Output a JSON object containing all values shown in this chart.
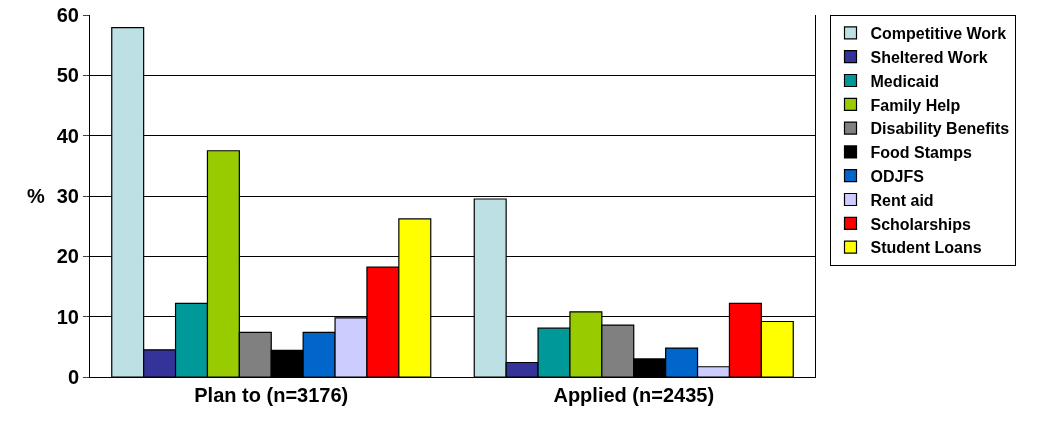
{
  "chart_data": {
    "type": "bar",
    "ylabel": "%",
    "categories": [
      "Plan to (n=3176)",
      "Applied (n=2435)"
    ],
    "ylim": [
      0,
      60
    ],
    "yticks": [
      0,
      10,
      20,
      30,
      40,
      50,
      60
    ],
    "grid": "y",
    "legend": "right",
    "series": [
      {
        "name": "Competitive Work",
        "color": "#bde0e4",
        "values": [
          57.9,
          29.5
        ]
      },
      {
        "name": "Sheltered Work",
        "color": "#333399",
        "values": [
          4.5,
          2.4
        ]
      },
      {
        "name": "Medicaid",
        "color": "#009999",
        "values": [
          12.2,
          8.1
        ]
      },
      {
        "name": "Family Help",
        "color": "#99cc00",
        "values": [
          37.5,
          10.8
        ]
      },
      {
        "name": "Disability Benefits",
        "color": "#808080",
        "values": [
          7.4,
          8.6
        ]
      },
      {
        "name": "Food Stamps",
        "color": "#000000",
        "values": [
          4.4,
          3.0
        ]
      },
      {
        "name": "ODJFS",
        "color": "#0066cc",
        "values": [
          7.4,
          4.8
        ]
      },
      {
        "name": "Rent aid",
        "color": "#ccccff",
        "values": [
          9.8,
          1.7
        ]
      },
      {
        "name": "Scholarships",
        "color": "#ff0000",
        "values": [
          18.2,
          12.2
        ]
      },
      {
        "name": "Student Loans",
        "color": "#ffff00",
        "values": [
          26.2,
          9.2
        ]
      }
    ]
  }
}
